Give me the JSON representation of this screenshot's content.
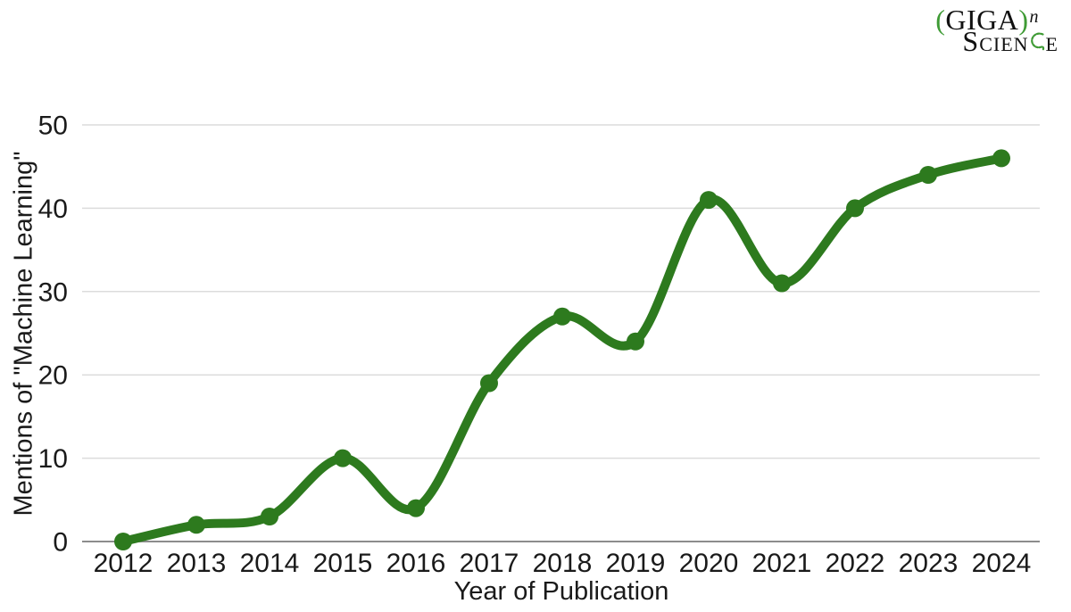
{
  "logo": {
    "open_paren": "(",
    "giga": "GIGA",
    "close_paren": ")",
    "exponent": "n",
    "science_s": "S",
    "science_cien": "CIEN",
    "science_e": "E",
    "green": "#3f9b35"
  },
  "chart_data": {
    "type": "line",
    "title": "",
    "xlabel": "Year of Publication",
    "ylabel": "Mentions of \"Machine Learning\"",
    "categories": [
      "2012",
      "2013",
      "2014",
      "2015",
      "2016",
      "2017",
      "2018",
      "2019",
      "2020",
      "2021",
      "2022",
      "2023",
      "2024"
    ],
    "values": [
      0,
      2,
      3,
      10,
      4,
      19,
      27,
      24,
      41,
      31,
      40,
      44,
      46
    ],
    "ylim": [
      0,
      50
    ],
    "yticks": [
      0,
      10,
      20,
      30,
      40,
      50
    ],
    "grid": true,
    "legend": "none",
    "smooth": true,
    "line_color": "#2d7a1e",
    "marker_color": "#2d7a1e",
    "grid_color": "#dcdcdc",
    "axis_color": "#8c8c8c",
    "text_color": "#1a1a1a"
  }
}
